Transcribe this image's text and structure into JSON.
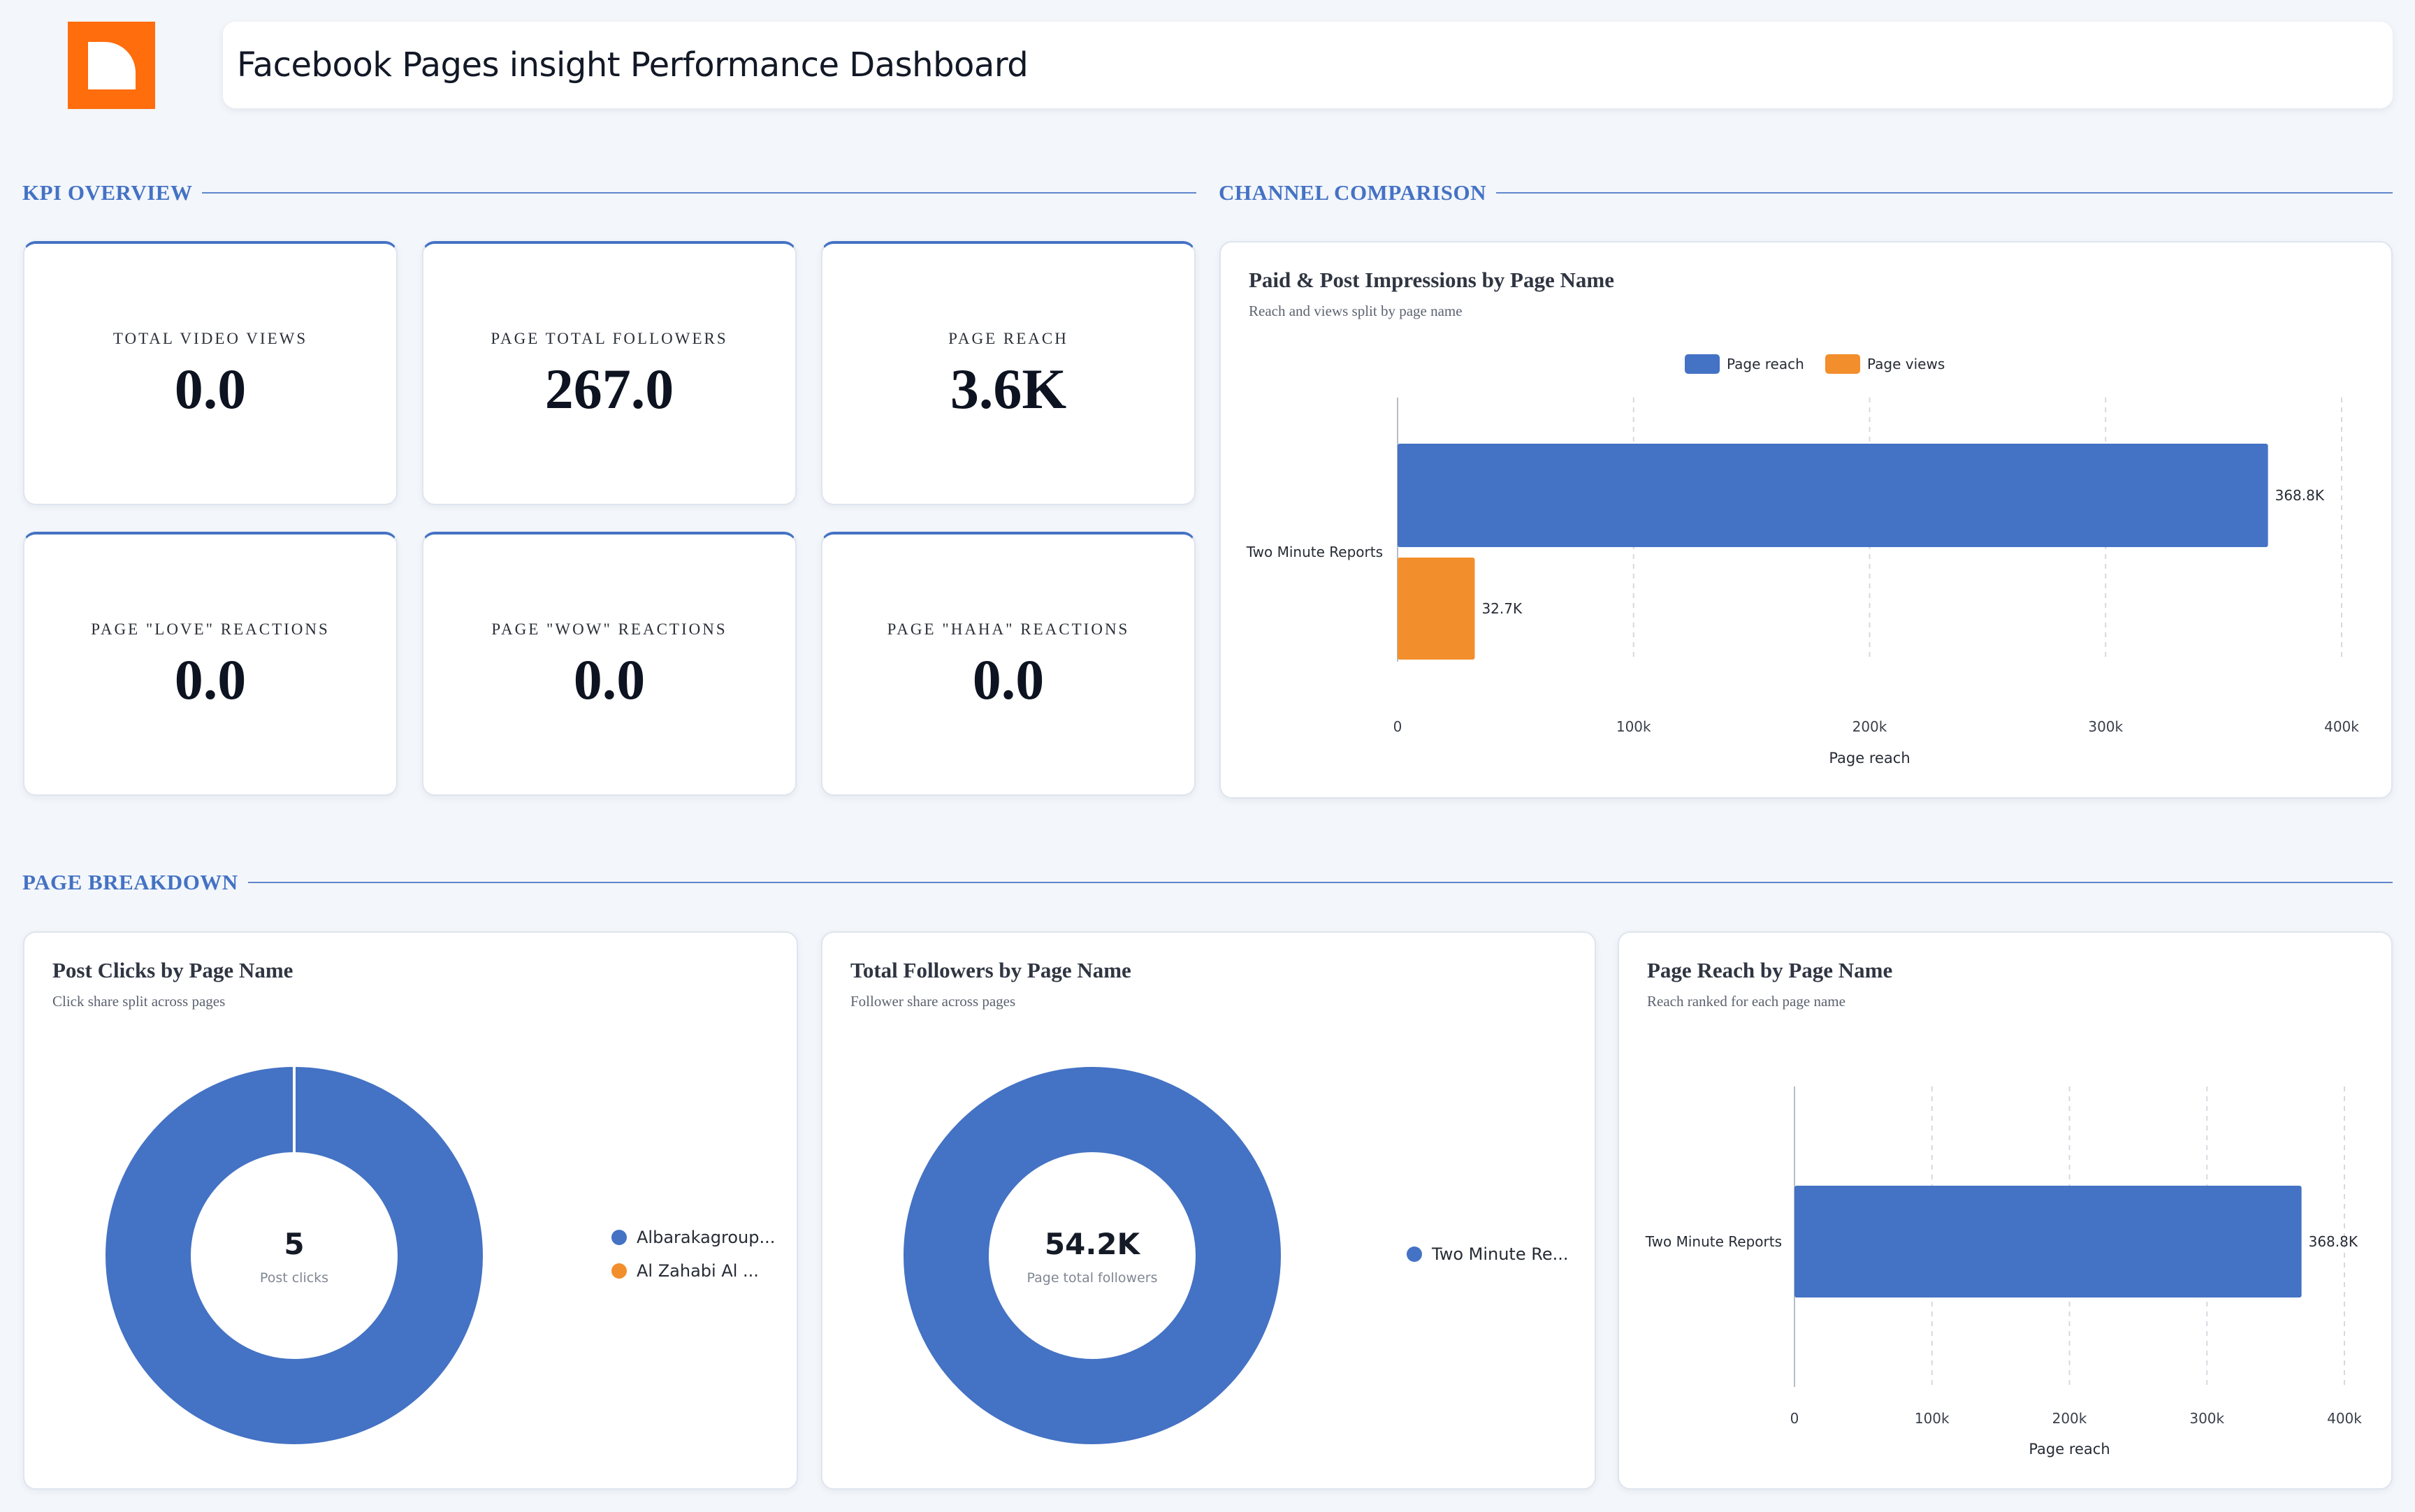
{
  "header": {
    "title": "Facebook Pages insight Performance Dashboard"
  },
  "colors": {
    "accent": "#4472c4",
    "secondary": "#f28e2b",
    "logo": "#ff6d0d"
  },
  "sections": {
    "kpi": "KPI OVERVIEW",
    "channel": "CHANNEL COMPARISON",
    "breakdown": "PAGE BREAKDOWN"
  },
  "kpis": [
    {
      "label": "TOTAL VIDEO VIEWS",
      "value": "0.0"
    },
    {
      "label": "PAGE TOTAL FOLLOWERS",
      "value": "267.0"
    },
    {
      "label": "PAGE REACH",
      "value": "3.6K"
    },
    {
      "label": "PAGE \"LOVE\" REACTIONS",
      "value": "0.0"
    },
    {
      "label": "PAGE \"WOW\" REACTIONS",
      "value": "0.0"
    },
    {
      "label": "PAGE \"HAHA\" REACTIONS",
      "value": "0.0"
    }
  ],
  "chart_data": [
    {
      "id": "impressions",
      "type": "bar",
      "orientation": "horizontal",
      "title": "Paid & Post Impressions by Page Name",
      "subtitle": "Reach and views split by page name",
      "categories": [
        "Two Minute Reports"
      ],
      "series": [
        {
          "name": "Page reach",
          "values": [
            368800
          ],
          "labels": [
            "368.8K"
          ],
          "color": "#4472c4"
        },
        {
          "name": "Page views",
          "values": [
            32700
          ],
          "labels": [
            "32.7K"
          ],
          "color": "#f28e2b"
        }
      ],
      "xlabel": "Page reach",
      "xlim": [
        0,
        400000
      ],
      "ticks": [
        "0",
        "100k",
        "200k",
        "300k",
        "400k"
      ],
      "legend": "top",
      "grid": true
    },
    {
      "id": "post-clicks",
      "type": "pie",
      "donut": true,
      "title": "Post Clicks by Page Name",
      "subtitle": "Click share split across pages",
      "center_value": "5",
      "center_label": "Post clicks",
      "slices": [
        {
          "name": "Albarakagroup...",
          "value": 5,
          "color": "#4472c4"
        },
        {
          "name": "Al Zahabi Al ...",
          "value": 0,
          "color": "#f28e2b"
        }
      ],
      "legend": "right"
    },
    {
      "id": "followers",
      "type": "pie",
      "donut": true,
      "title": "Total Followers by Page Name",
      "subtitle": "Follower share across pages",
      "center_value": "54.2K",
      "center_label": "Page total followers",
      "slices": [
        {
          "name": "Two Minute Re...",
          "value": 54200,
          "color": "#4472c4"
        }
      ],
      "legend": "right"
    },
    {
      "id": "page-reach",
      "type": "bar",
      "orientation": "horizontal",
      "title": "Page Reach by Page Name",
      "subtitle": "Reach ranked for each page name",
      "categories": [
        "Two Minute Reports"
      ],
      "series": [
        {
          "name": "Page reach",
          "values": [
            368800
          ],
          "labels": [
            "368.8K"
          ],
          "color": "#4472c4"
        }
      ],
      "xlabel": "Page reach",
      "xlim": [
        0,
        400000
      ],
      "ticks": [
        "0",
        "100k",
        "200k",
        "300k",
        "400k"
      ],
      "grid": true
    }
  ]
}
